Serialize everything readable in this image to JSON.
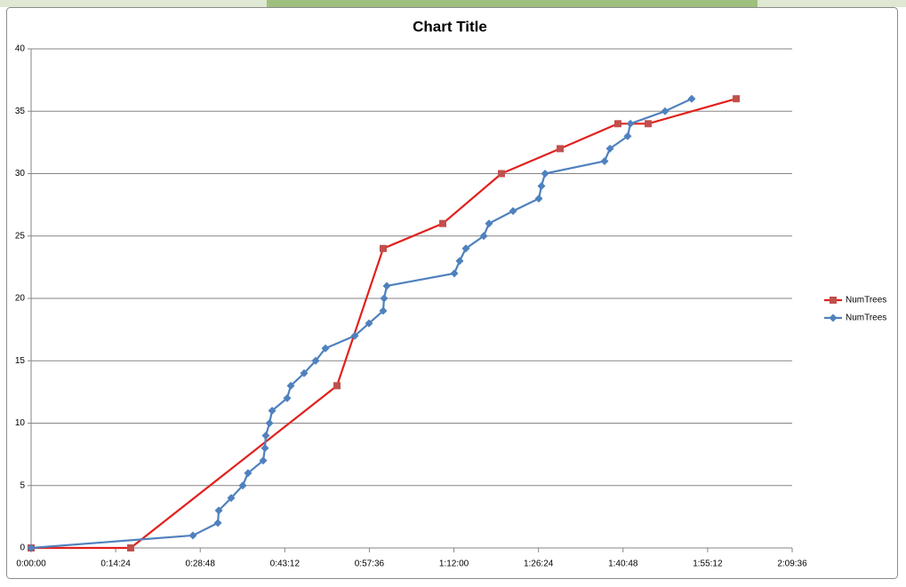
{
  "chart_data": {
    "type": "line",
    "title": "Chart Title",
    "xlim": [
      0,
      7776
    ],
    "xticks": [
      {
        "value": 0,
        "label": "0:00:00"
      },
      {
        "value": 864,
        "label": "0:14:24"
      },
      {
        "value": 1728,
        "label": "0:28:48"
      },
      {
        "value": 2592,
        "label": "0:43:12"
      },
      {
        "value": 3456,
        "label": "0:57:36"
      },
      {
        "value": 4320,
        "label": "1:12:00"
      },
      {
        "value": 5184,
        "label": "1:26:24"
      },
      {
        "value": 6048,
        "label": "1:40:48"
      },
      {
        "value": 6912,
        "label": "1:55:12"
      },
      {
        "value": 7776,
        "label": "2:09:36"
      }
    ],
    "ylim": [
      0,
      40
    ],
    "yticks": [
      0,
      5,
      10,
      15,
      20,
      25,
      30,
      35,
      40
    ],
    "grid": true,
    "legend": "right",
    "series": [
      {
        "name": "NumTrees",
        "color": "#e2201c",
        "marker_color": "#c0504d",
        "marker": "square",
        "x": [
          0,
          1017,
          3125,
          3597,
          4206,
          4805,
          5405,
          5995,
          6304,
          7204
        ],
        "values": [
          0,
          0,
          13,
          24,
          26,
          30,
          32,
          34,
          34,
          36
        ]
      },
      {
        "name": "NumTrees",
        "color": "#4f81bd",
        "marker_color": "#4f81bd",
        "marker": "diamond",
        "x": [
          0,
          1653,
          1908,
          1917,
          2044,
          2162,
          2216,
          2371,
          2389,
          2398,
          2435,
          2462,
          2616,
          2653,
          2789,
          2907,
          3007,
          3307,
          3452,
          3597,
          3606,
          3634,
          4324,
          4378,
          4442,
          4624,
          4678,
          4924,
          5187,
          5214,
          5251,
          5859,
          5914,
          6095,
          6123,
          6477,
          6749
        ],
        "values": [
          0,
          1,
          2,
          3,
          4,
          5,
          6,
          7,
          8,
          9,
          10,
          11,
          12,
          13,
          14,
          15,
          16,
          17,
          18,
          19,
          20,
          21,
          22,
          23,
          24,
          25,
          26,
          27,
          28,
          29,
          30,
          31,
          32,
          33,
          34,
          35,
          36
        ]
      }
    ]
  }
}
